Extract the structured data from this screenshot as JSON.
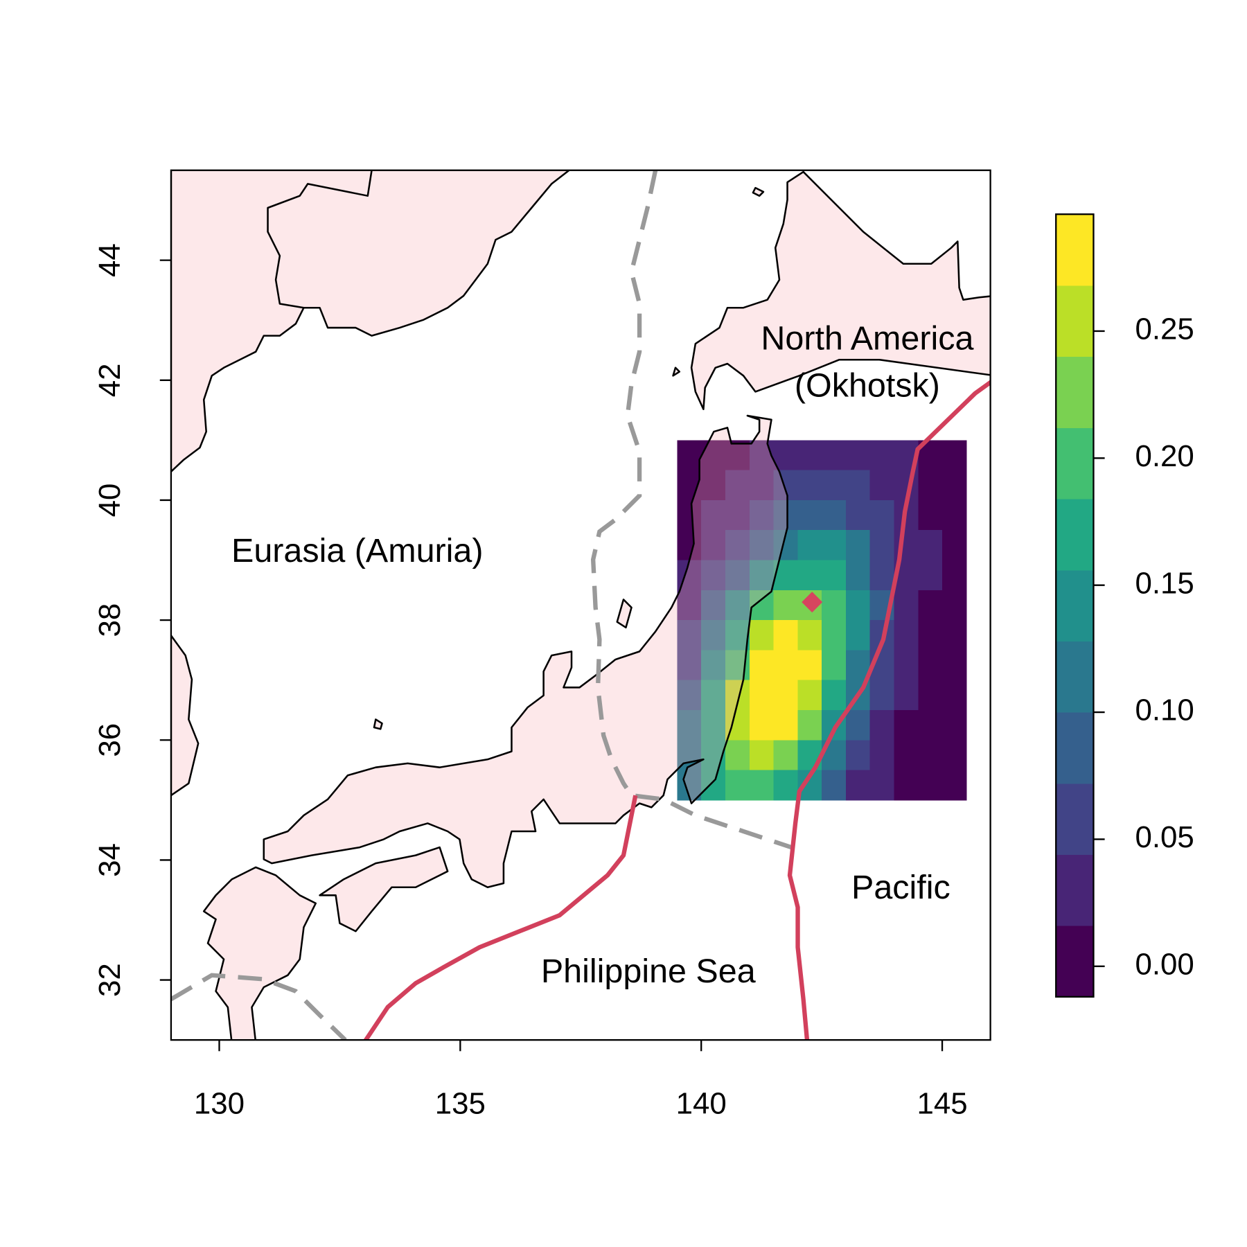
{
  "map": {
    "xlim": [
      129,
      146
    ],
    "ylim": [
      31,
      45.5
    ],
    "xticks": [
      130,
      135,
      140,
      145
    ],
    "yticks": [
      32,
      34,
      36,
      38,
      40,
      42,
      44
    ],
    "labels": [
      "Eurasia (Amuria)",
      "North America",
      "(Okhotsk)",
      "Philippine Sea",
      "Pacific"
    ],
    "field": {
      "lonlim": [
        139.5,
        145.5
      ],
      "latlim": [
        35,
        41
      ],
      "values": [
        [
          0.0,
          0.0,
          0.01,
          0.02,
          0.03,
          0.03,
          0.04,
          0.03,
          0.03,
          0.02,
          0.01,
          0.0
        ],
        [
          0.0,
          0.01,
          0.02,
          0.03,
          0.05,
          0.06,
          0.06,
          0.05,
          0.04,
          0.02,
          0.01,
          0.0
        ],
        [
          0.01,
          0.02,
          0.03,
          0.06,
          0.08,
          0.09,
          0.09,
          0.07,
          0.05,
          0.03,
          0.01,
          0.01
        ],
        [
          0.01,
          0.03,
          0.06,
          0.09,
          0.12,
          0.14,
          0.13,
          0.1,
          0.06,
          0.03,
          0.02,
          0.01
        ],
        [
          0.02,
          0.05,
          0.09,
          0.14,
          0.17,
          0.18,
          0.16,
          0.12,
          0.07,
          0.04,
          0.02,
          0.01
        ],
        [
          0.04,
          0.08,
          0.13,
          0.19,
          0.23,
          0.23,
          0.19,
          0.13,
          0.08,
          0.04,
          0.01,
          0.01
        ],
        [
          0.05,
          0.11,
          0.17,
          0.24,
          0.27,
          0.26,
          0.2,
          0.13,
          0.07,
          0.03,
          0.01,
          0.0
        ],
        [
          0.07,
          0.14,
          0.21,
          0.27,
          0.29,
          0.27,
          0.2,
          0.12,
          0.06,
          0.03,
          0.01,
          0.0
        ],
        [
          0.09,
          0.16,
          0.24,
          0.29,
          0.29,
          0.25,
          0.18,
          0.1,
          0.05,
          0.02,
          0.01,
          0.0
        ],
        [
          0.1,
          0.17,
          0.24,
          0.28,
          0.27,
          0.22,
          0.15,
          0.08,
          0.04,
          0.01,
          0.0,
          0.0
        ],
        [
          0.11,
          0.17,
          0.22,
          0.25,
          0.23,
          0.17,
          0.11,
          0.06,
          0.03,
          0.01,
          0.0,
          0.0
        ],
        [
          0.1,
          0.16,
          0.2,
          0.2,
          0.17,
          0.13,
          0.08,
          0.04,
          0.02,
          0.01,
          0.0,
          0.0
        ]
      ]
    },
    "marker": {
      "lon": 142.3,
      "lat": 38.3,
      "color": "#d6455f"
    },
    "colorbar": {
      "levels": [
        -0.012,
        0.016,
        0.044,
        0.072,
        0.1,
        0.128,
        0.156,
        0.184,
        0.212,
        0.24,
        0.268,
        0.296
      ],
      "colors": [
        "#440154",
        "#482576",
        "#414487",
        "#35608d",
        "#2a788e",
        "#21908c",
        "#22a884",
        "#43bf71",
        "#7ad151",
        "#bbdf27",
        "#fde725"
      ],
      "ticks": [
        {
          "value": 0,
          "label": "0.00"
        },
        0.05,
        {
          "value": 0.1,
          "label": "0.10"
        },
        0.15,
        {
          "value": 0.2,
          "label": "0.20"
        },
        0.25
      ]
    }
  }
}
